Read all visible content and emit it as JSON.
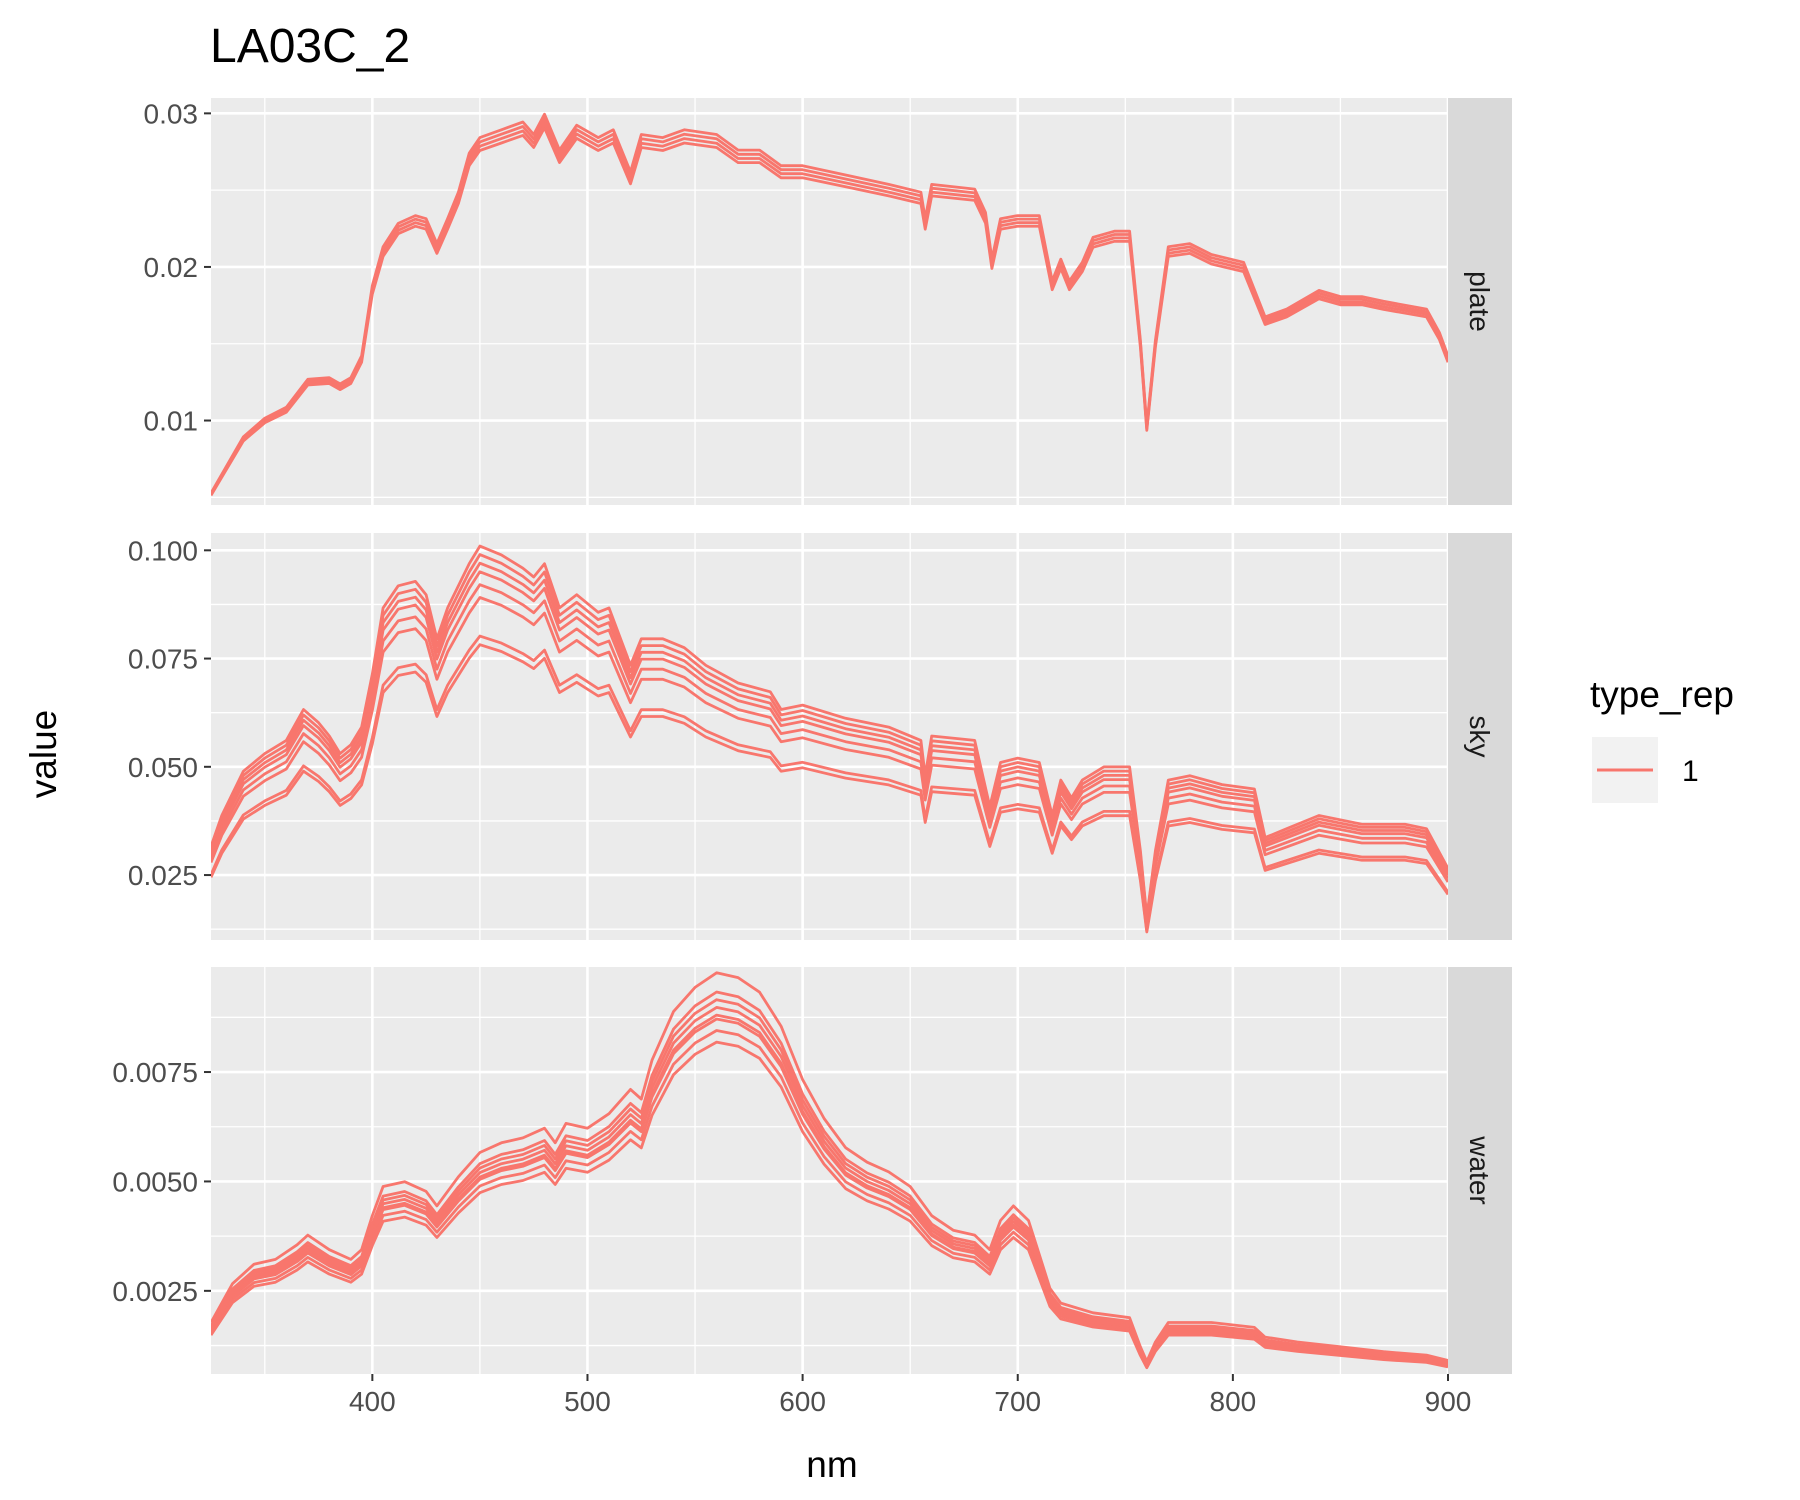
{
  "chart_data": {
    "type": "line",
    "title": "LA03C_2",
    "xlabel": "nm",
    "ylabel": "value",
    "xlim": [
      325,
      900
    ],
    "x_ticks": [
      400,
      500,
      600,
      700,
      800,
      900
    ],
    "x_tick_labels": [
      "400",
      "500",
      "600",
      "700",
      "800",
      "900"
    ],
    "grid": true,
    "legend": {
      "title": "type_rep",
      "position": "right",
      "entries": [
        {
          "label": "1",
          "color": "#f8766d"
        }
      ]
    },
    "series_color": "#f8766d",
    "facets": [
      {
        "strip": "plate",
        "ylim": [
          0.0045,
          0.031
        ],
        "y_ticks": [
          0.01,
          0.02,
          0.03
        ],
        "y_tick_labels": [
          "0.01",
          "0.02",
          "0.03"
        ],
        "base_curve": [
          [
            325,
            0.0052
          ],
          [
            340,
            0.0088
          ],
          [
            350,
            0.01
          ],
          [
            360,
            0.0107
          ],
          [
            370,
            0.0125
          ],
          [
            380,
            0.0126
          ],
          [
            385,
            0.0122
          ],
          [
            390,
            0.0126
          ],
          [
            395,
            0.014
          ],
          [
            400,
            0.0185
          ],
          [
            405,
            0.021
          ],
          [
            412,
            0.0225
          ],
          [
            420,
            0.023
          ],
          [
            425,
            0.0228
          ],
          [
            430,
            0.0212
          ],
          [
            435,
            0.0228
          ],
          [
            440,
            0.0245
          ],
          [
            445,
            0.027
          ],
          [
            450,
            0.028
          ],
          [
            460,
            0.0285
          ],
          [
            470,
            0.029
          ],
          [
            475,
            0.0282
          ],
          [
            480,
            0.0295
          ],
          [
            487,
            0.0272
          ],
          [
            495,
            0.0288
          ],
          [
            505,
            0.028
          ],
          [
            512,
            0.0285
          ],
          [
            520,
            0.0258
          ],
          [
            525,
            0.0282
          ],
          [
            535,
            0.028
          ],
          [
            545,
            0.0285
          ],
          [
            560,
            0.0282
          ],
          [
            570,
            0.0272
          ],
          [
            580,
            0.0272
          ],
          [
            590,
            0.0262
          ],
          [
            600,
            0.0262
          ],
          [
            620,
            0.0256
          ],
          [
            640,
            0.025
          ],
          [
            655,
            0.0245
          ],
          [
            657,
            0.0228
          ],
          [
            660,
            0.025
          ],
          [
            680,
            0.0247
          ],
          [
            685,
            0.0232
          ],
          [
            688,
            0.0202
          ],
          [
            692,
            0.0228
          ],
          [
            700,
            0.023
          ],
          [
            710,
            0.023
          ],
          [
            716,
            0.0188
          ],
          [
            720,
            0.0202
          ],
          [
            724,
            0.0188
          ],
          [
            730,
            0.02
          ],
          [
            735,
            0.0216
          ],
          [
            745,
            0.022
          ],
          [
            752,
            0.022
          ],
          [
            757,
            0.015
          ],
          [
            760,
            0.0095
          ],
          [
            764,
            0.015
          ],
          [
            770,
            0.021
          ],
          [
            780,
            0.0212
          ],
          [
            790,
            0.0205
          ],
          [
            805,
            0.02
          ],
          [
            815,
            0.0165
          ],
          [
            825,
            0.017
          ],
          [
            840,
            0.0182
          ],
          [
            850,
            0.0178
          ],
          [
            860,
            0.0178
          ],
          [
            870,
            0.0175
          ],
          [
            890,
            0.017
          ],
          [
            896,
            0.0155
          ],
          [
            900,
            0.014
          ]
        ],
        "replicate_scales": [
          0.985,
          0.995,
          1.005,
          1.015
        ]
      },
      {
        "strip": "sky",
        "ylim": [
          0.01,
          0.104
        ],
        "y_ticks": [
          0.025,
          0.05,
          0.075,
          0.1
        ],
        "y_tick_labels": [
          "0.025",
          "0.050",
          "0.075",
          "0.100"
        ],
        "base_curve": [
          [
            325,
            0.031
          ],
          [
            330,
            0.038
          ],
          [
            340,
            0.048
          ],
          [
            350,
            0.052
          ],
          [
            360,
            0.055
          ],
          [
            368,
            0.062
          ],
          [
            375,
            0.059
          ],
          [
            380,
            0.056
          ],
          [
            385,
            0.052
          ],
          [
            390,
            0.054
          ],
          [
            395,
            0.058
          ],
          [
            400,
            0.07
          ],
          [
            405,
            0.085
          ],
          [
            412,
            0.09
          ],
          [
            420,
            0.091
          ],
          [
            425,
            0.088
          ],
          [
            430,
            0.078
          ],
          [
            435,
            0.085
          ],
          [
            445,
            0.095
          ],
          [
            450,
            0.099
          ],
          [
            460,
            0.097
          ],
          [
            470,
            0.094
          ],
          [
            475,
            0.092
          ],
          [
            480,
            0.095
          ],
          [
            487,
            0.085
          ],
          [
            495,
            0.088
          ],
          [
            505,
            0.084
          ],
          [
            510,
            0.085
          ],
          [
            520,
            0.072
          ],
          [
            525,
            0.078
          ],
          [
            535,
            0.078
          ],
          [
            545,
            0.076
          ],
          [
            555,
            0.072
          ],
          [
            570,
            0.068
          ],
          [
            585,
            0.066
          ],
          [
            590,
            0.062
          ],
          [
            600,
            0.063
          ],
          [
            620,
            0.06
          ],
          [
            640,
            0.058
          ],
          [
            655,
            0.055
          ],
          [
            657,
            0.047
          ],
          [
            660,
            0.056
          ],
          [
            680,
            0.055
          ],
          [
            687,
            0.04
          ],
          [
            692,
            0.05
          ],
          [
            700,
            0.051
          ],
          [
            710,
            0.05
          ],
          [
            716,
            0.038
          ],
          [
            720,
            0.046
          ],
          [
            725,
            0.042
          ],
          [
            730,
            0.046
          ],
          [
            740,
            0.049
          ],
          [
            752,
            0.049
          ],
          [
            757,
            0.03
          ],
          [
            760,
            0.015
          ],
          [
            764,
            0.03
          ],
          [
            770,
            0.046
          ],
          [
            780,
            0.047
          ],
          [
            795,
            0.045
          ],
          [
            810,
            0.044
          ],
          [
            815,
            0.033
          ],
          [
            825,
            0.035
          ],
          [
            840,
            0.038
          ],
          [
            850,
            0.037
          ],
          [
            860,
            0.036
          ],
          [
            880,
            0.036
          ],
          [
            890,
            0.035
          ],
          [
            900,
            0.026
          ]
        ],
        "replicate_scales": [
          0.79,
          0.81,
          0.9,
          0.93,
          0.96,
          0.98,
          1.0,
          1.02
        ]
      },
      {
        "strip": "water",
        "ylim": [
          0.0006,
          0.0099
        ],
        "y_ticks": [
          0.0025,
          0.005,
          0.0075
        ],
        "y_tick_labels": [
          "0.0025",
          "0.0050",
          "0.0075"
        ],
        "base_curve": [
          [
            325,
            0.0016
          ],
          [
            335,
            0.0024
          ],
          [
            345,
            0.0028
          ],
          [
            355,
            0.0029
          ],
          [
            365,
            0.0032
          ],
          [
            370,
            0.0034
          ],
          [
            380,
            0.0031
          ],
          [
            390,
            0.0029
          ],
          [
            395,
            0.0031
          ],
          [
            400,
            0.0038
          ],
          [
            405,
            0.0044
          ],
          [
            415,
            0.0045
          ],
          [
            425,
            0.0043
          ],
          [
            430,
            0.004
          ],
          [
            440,
            0.0046
          ],
          [
            450,
            0.0051
          ],
          [
            460,
            0.0053
          ],
          [
            470,
            0.0054
          ],
          [
            480,
            0.0056
          ],
          [
            485,
            0.0053
          ],
          [
            490,
            0.0057
          ],
          [
            500,
            0.0056
          ],
          [
            510,
            0.0059
          ],
          [
            520,
            0.0064
          ],
          [
            525,
            0.0062
          ],
          [
            530,
            0.007
          ],
          [
            540,
            0.008
          ],
          [
            550,
            0.0085
          ],
          [
            560,
            0.0088
          ],
          [
            570,
            0.0087
          ],
          [
            580,
            0.0084
          ],
          [
            590,
            0.0077
          ],
          [
            600,
            0.0066
          ],
          [
            610,
            0.0058
          ],
          [
            620,
            0.0052
          ],
          [
            630,
            0.0049
          ],
          [
            640,
            0.0047
          ],
          [
            650,
            0.0044
          ],
          [
            660,
            0.0038
          ],
          [
            670,
            0.0035
          ],
          [
            680,
            0.0034
          ],
          [
            687,
            0.0031
          ],
          [
            692,
            0.0037
          ],
          [
            698,
            0.004
          ],
          [
            705,
            0.0037
          ],
          [
            710,
            0.003
          ],
          [
            715,
            0.0023
          ],
          [
            720,
            0.002
          ],
          [
            735,
            0.0018
          ],
          [
            752,
            0.0017
          ],
          [
            757,
            0.0011
          ],
          [
            760,
            0.0008
          ],
          [
            764,
            0.0012
          ],
          [
            770,
            0.0016
          ],
          [
            790,
            0.0016
          ],
          [
            810,
            0.0015
          ],
          [
            815,
            0.0013
          ],
          [
            830,
            0.0012
          ],
          [
            850,
            0.0011
          ],
          [
            870,
            0.001
          ],
          [
            890,
            0.00093
          ],
          [
            900,
            0.00082
          ]
        ],
        "replicate_scales": [
          0.93,
          0.96,
          0.99,
          1.0,
          1.02,
          1.04,
          1.06,
          1.11
        ]
      }
    ]
  }
}
